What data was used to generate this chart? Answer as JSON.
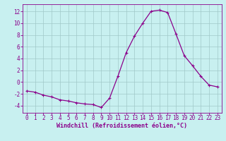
{
  "hours": [
    0,
    1,
    2,
    3,
    4,
    5,
    6,
    7,
    8,
    9,
    10,
    11,
    12,
    13,
    14,
    15,
    16,
    17,
    18,
    19,
    20,
    21,
    22,
    23
  ],
  "values": [
    -1.5,
    -1.7,
    -2.2,
    -2.5,
    -3.0,
    -3.2,
    -3.5,
    -3.7,
    -3.8,
    -4.3,
    -2.7,
    1.0,
    5.0,
    7.8,
    10.0,
    12.0,
    12.2,
    11.8,
    8.2,
    4.5,
    2.8,
    1.0,
    -0.5,
    -0.8
  ],
  "line_color": "#8b008b",
  "marker": "+",
  "marker_size": 3,
  "marker_lw": 0.8,
  "bg_color": "#c8f0f0",
  "grid_color": "#a0c8c8",
  "xlabel": "Windchill (Refroidissement éolien,°C)",
  "xlim": [
    -0.5,
    23.5
  ],
  "ylim": [
    -5.2,
    13.2
  ],
  "yticks": [
    -4,
    -2,
    0,
    2,
    4,
    6,
    8,
    10,
    12
  ],
  "xticks": [
    0,
    1,
    2,
    3,
    4,
    5,
    6,
    7,
    8,
    9,
    10,
    11,
    12,
    13,
    14,
    15,
    16,
    17,
    18,
    19,
    20,
    21,
    22,
    23
  ],
  "tick_color": "#8b008b",
  "axis_color": "#8b008b",
  "tick_fontsize": 5.5,
  "xlabel_fontsize": 6.0,
  "line_width": 0.9
}
